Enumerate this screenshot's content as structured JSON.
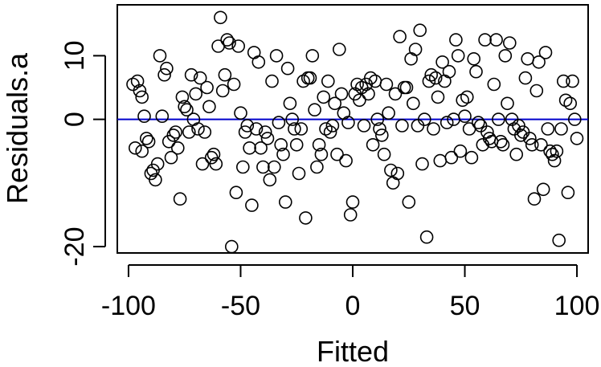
{
  "chart_data": {
    "type": "scatter",
    "title": "",
    "xlabel": "Fitted",
    "ylabel": "Residuals.a",
    "xlim": [
      -105,
      105
    ],
    "ylim": [
      -21,
      18
    ],
    "xticks": [
      -100,
      -50,
      0,
      50,
      100
    ],
    "xtick_labels": [
      "-100",
      "-50",
      "0",
      "50",
      "100"
    ],
    "yticks": [
      -20,
      0,
      10
    ],
    "ytick_labels": [
      "-20",
      "0",
      "10"
    ],
    "grid": false,
    "reference_line": {
      "y": 0,
      "color": "#0000cc"
    },
    "marker": {
      "shape": "open-circle",
      "color": "#000000"
    },
    "points": [
      [
        -98,
        5.5
      ],
      [
        -96,
        6
      ],
      [
        -95,
        4.5
      ],
      [
        -94,
        3.5
      ],
      [
        -93,
        0.5
      ],
      [
        -92,
        -3
      ],
      [
        -91,
        -3.5
      ],
      [
        -90,
        -8.5
      ],
      [
        -89,
        -8
      ],
      [
        -88,
        -9.5
      ],
      [
        -97,
        -4.5
      ],
      [
        -94,
        -5
      ],
      [
        -87,
        -7
      ],
      [
        -86,
        10
      ],
      [
        -84,
        7
      ],
      [
        -83,
        8
      ],
      [
        -82,
        -3.5
      ],
      [
        -81,
        -6
      ],
      [
        -80,
        -2.5
      ],
      [
        -79,
        -2
      ],
      [
        -85,
        0.5
      ],
      [
        -78,
        -4.5
      ],
      [
        -77,
        -12.5
      ],
      [
        -76,
        3.5
      ],
      [
        -75,
        2
      ],
      [
        -74,
        1.5
      ],
      [
        -73,
        -2
      ],
      [
        -72,
        7
      ],
      [
        -70,
        4
      ],
      [
        -69,
        -1.5
      ],
      [
        -68,
        6.5
      ],
      [
        -66,
        -2
      ],
      [
        -65,
        5
      ],
      [
        -64,
        2
      ],
      [
        -63,
        -6
      ],
      [
        -62,
        -5.5
      ],
      [
        -61,
        -7
      ],
      [
        -60,
        11.5
      ],
      [
        -59,
        16
      ],
      [
        -58,
        4.5
      ],
      [
        -57,
        7
      ],
      [
        -56,
        12.5
      ],
      [
        -55,
        12
      ],
      [
        -54,
        -20
      ],
      [
        -53,
        5.5
      ],
      [
        -52,
        -11.5
      ],
      [
        -51,
        11.5
      ],
      [
        -50,
        1
      ],
      [
        -49,
        -7.5
      ],
      [
        -48,
        -2
      ],
      [
        -46,
        -4.5
      ],
      [
        -45,
        -13.5
      ],
      [
        -44,
        10.5
      ],
      [
        -43,
        -1.5
      ],
      [
        -42,
        9
      ],
      [
        -41,
        -4.5
      ],
      [
        -40,
        -7.5
      ],
      [
        -39,
        -2
      ],
      [
        -38,
        -3
      ],
      [
        -37,
        -9.5
      ],
      [
        -36,
        6
      ],
      [
        -35,
        -7.5
      ],
      [
        -34,
        10
      ],
      [
        -33,
        -0.5
      ],
      [
        -32,
        -4
      ],
      [
        -31,
        -5.5
      ],
      [
        -30,
        -13
      ],
      [
        -29,
        8
      ],
      [
        -28,
        2.5
      ],
      [
        -27,
        0
      ],
      [
        -26,
        -1.5
      ],
      [
        -25,
        -4
      ],
      [
        -24,
        -8.5
      ],
      [
        -23,
        -1.5
      ],
      [
        -22,
        6
      ],
      [
        -21,
        -15.5
      ],
      [
        -20,
        6.5
      ],
      [
        -19,
        6.5
      ],
      [
        -18,
        10
      ],
      [
        -17,
        1.5
      ],
      [
        -16,
        -7.5
      ],
      [
        -15,
        -4
      ],
      [
        -14,
        -5.5
      ],
      [
        -13,
        3.5
      ],
      [
        -12,
        -1.5
      ],
      [
        -11,
        6
      ],
      [
        -10,
        -2
      ],
      [
        -9,
        -1
      ],
      [
        -8,
        2.5
      ],
      [
        -7,
        -5.5
      ],
      [
        -6,
        11
      ],
      [
        -5,
        4
      ],
      [
        -4,
        1
      ],
      [
        -3,
        -6.5
      ],
      [
        -2,
        -0.5
      ],
      [
        -1,
        -15
      ],
      [
        0,
        -13
      ],
      [
        1,
        4
      ],
      [
        2,
        5.5
      ],
      [
        3,
        3
      ],
      [
        4,
        5
      ],
      [
        5,
        -1
      ],
      [
        6,
        5.5
      ],
      [
        7,
        4
      ],
      [
        8,
        6.5
      ],
      [
        9,
        -4
      ],
      [
        10,
        6
      ],
      [
        11,
        0
      ],
      [
        12,
        -1.5
      ],
      [
        13,
        -2.5
      ],
      [
        14,
        -5.5
      ],
      [
        15,
        5.5
      ],
      [
        16,
        1
      ],
      [
        17,
        -8
      ],
      [
        18,
        -10
      ],
      [
        19,
        4
      ],
      [
        20,
        -8.5
      ],
      [
        21,
        13
      ],
      [
        22,
        -1
      ],
      [
        23,
        5
      ],
      [
        24,
        5
      ],
      [
        25,
        -13
      ],
      [
        26,
        9.5
      ],
      [
        27,
        2.5
      ],
      [
        28,
        11
      ],
      [
        29,
        -1
      ],
      [
        30,
        14
      ],
      [
        31,
        -7
      ],
      [
        32,
        0
      ],
      [
        33,
        -18.5
      ],
      [
        34,
        6
      ],
      [
        35,
        7
      ],
      [
        36,
        -1.5
      ],
      [
        37,
        6.5
      ],
      [
        38,
        3.5
      ],
      [
        39,
        -6.5
      ],
      [
        40,
        9
      ],
      [
        41,
        6
      ],
      [
        42,
        -0.5
      ],
      [
        43,
        7.5
      ],
      [
        44,
        -6
      ],
      [
        45,
        0
      ],
      [
        46,
        12.5
      ],
      [
        47,
        10
      ],
      [
        48,
        -5
      ],
      [
        49,
        3
      ],
      [
        50,
        0.5
      ],
      [
        51,
        3.5
      ],
      [
        52,
        -1.5
      ],
      [
        53,
        -6
      ],
      [
        54,
        9.5
      ],
      [
        55,
        7.5
      ],
      [
        56,
        -0.5
      ],
      [
        57,
        -1
      ],
      [
        58,
        -4
      ],
      [
        59,
        12.5
      ],
      [
        60,
        -2
      ],
      [
        61,
        -3
      ],
      [
        62,
        -3.5
      ],
      [
        63,
        5.5
      ],
      [
        64,
        12.5
      ],
      [
        65,
        0
      ],
      [
        66,
        -3.5
      ],
      [
        67,
        -4
      ],
      [
        68,
        10
      ],
      [
        69,
        2.5
      ],
      [
        70,
        12
      ],
      [
        71,
        0
      ],
      [
        72,
        -1.5
      ],
      [
        73,
        -5.5
      ],
      [
        74,
        -1
      ],
      [
        75,
        -2.5
      ],
      [
        76,
        -2
      ],
      [
        77,
        6.5
      ],
      [
        78,
        9.5
      ],
      [
        79,
        -3
      ],
      [
        80,
        -4
      ],
      [
        81,
        -12.5
      ],
      [
        82,
        4.5
      ],
      [
        83,
        9
      ],
      [
        84,
        -4
      ],
      [
        85,
        -11
      ],
      [
        86,
        10.5
      ],
      [
        87,
        -1.5
      ],
      [
        88,
        -5
      ],
      [
        89,
        -5.5
      ],
      [
        90,
        -6.5
      ],
      [
        91,
        -5
      ],
      [
        92,
        -19
      ],
      [
        93,
        -1.5
      ],
      [
        94,
        6
      ],
      [
        95,
        3
      ],
      [
        96,
        -11.5
      ],
      [
        97,
        2.5
      ],
      [
        98,
        6
      ],
      [
        99,
        0
      ],
      [
        100,
        -3
      ],
      [
        -71,
        0
      ],
      [
        -67,
        -7
      ],
      [
        -47,
        -1
      ]
    ]
  }
}
